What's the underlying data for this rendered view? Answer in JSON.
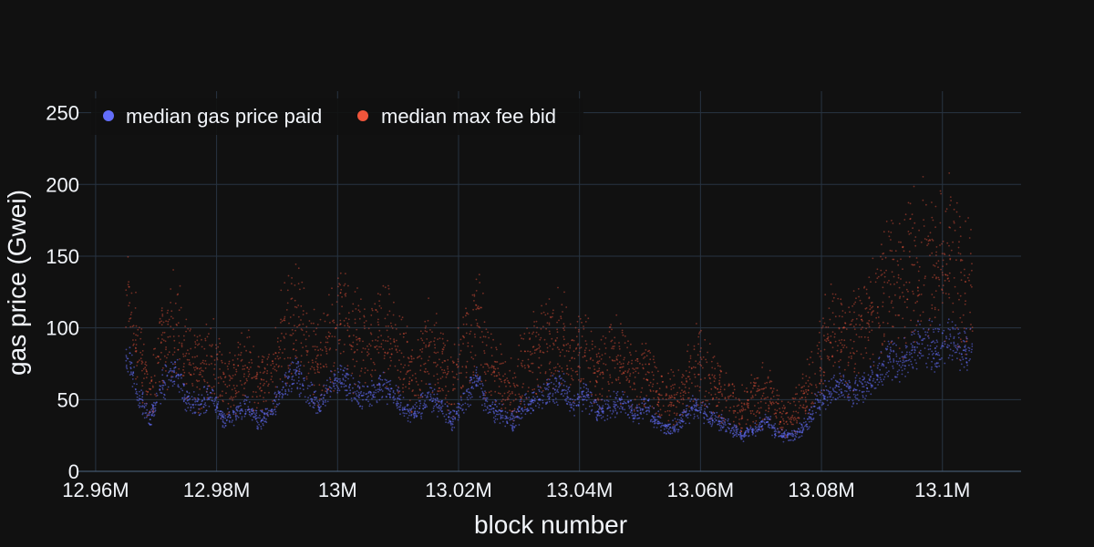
{
  "chart_data": {
    "type": "scatter",
    "title": "",
    "xlabel": "block number",
    "ylabel": "gas price (Gwei)",
    "xlim": [
      12957000,
      13113000
    ],
    "ylim": [
      0,
      265
    ],
    "x_ticks": [
      {
        "value": 12960000,
        "label": "12.96M"
      },
      {
        "value": 12980000,
        "label": "12.98M"
      },
      {
        "value": 13000000,
        "label": "13M"
      },
      {
        "value": 13020000,
        "label": "13.02M"
      },
      {
        "value": 13040000,
        "label": "13.04M"
      },
      {
        "value": 13060000,
        "label": "13.06M"
      },
      {
        "value": 13080000,
        "label": "13.08M"
      },
      {
        "value": 13100000,
        "label": "13.1M"
      }
    ],
    "y_ticks": [
      {
        "value": 0,
        "label": "0"
      },
      {
        "value": 50,
        "label": "50"
      },
      {
        "value": 100,
        "label": "100"
      },
      {
        "value": 150,
        "label": "150"
      },
      {
        "value": 200,
        "label": "200"
      },
      {
        "value": 250,
        "label": "250"
      }
    ],
    "grid": true,
    "legend_position": "top-left",
    "series": [
      {
        "name": "median gas price paid",
        "color": "#636efa",
        "x": [
          12965000,
          12967000,
          12969000,
          12971000,
          12973000,
          12975000,
          12977000,
          12979000,
          12981000,
          12983000,
          12985000,
          12987000,
          12989000,
          12991000,
          12993000,
          12995000,
          12997000,
          12999000,
          13001000,
          13003000,
          13005000,
          13007000,
          13009000,
          13011000,
          13013000,
          13015000,
          13017000,
          13019000,
          13021000,
          13023000,
          13025000,
          13027000,
          13029000,
          13031000,
          13033000,
          13035000,
          13037000,
          13039000,
          13041000,
          13043000,
          13045000,
          13047000,
          13049000,
          13051000,
          13053000,
          13055000,
          13057000,
          13059000,
          13061000,
          13063000,
          13065000,
          13067000,
          13069000,
          13071000,
          13073000,
          13075000,
          13077000,
          13079000,
          13081000,
          13083000,
          13085000,
          13087000,
          13089000,
          13091000,
          13093000,
          13095000,
          13097000,
          13099000,
          13101000,
          13103000,
          13105000
        ],
        "y": [
          85,
          55,
          35,
          60,
          70,
          50,
          45,
          55,
          35,
          40,
          45,
          35,
          40,
          60,
          70,
          55,
          45,
          60,
          65,
          55,
          50,
          60,
          55,
          45,
          40,
          55,
          45,
          35,
          50,
          65,
          45,
          40,
          35,
          45,
          50,
          55,
          60,
          45,
          55,
          40,
          45,
          50,
          40,
          45,
          35,
          30,
          35,
          45,
          40,
          35,
          30,
          25,
          30,
          35,
          25,
          25,
          30,
          45,
          55,
          60,
          55,
          60,
          65,
          80,
          75,
          85,
          90,
          85,
          90,
          85,
          85
        ]
      },
      {
        "name": "median max fee bid",
        "color": "#ef553b",
        "x": [
          12965000,
          12967000,
          12969000,
          12971000,
          12973000,
          12975000,
          12977000,
          12979000,
          12981000,
          12983000,
          12985000,
          12987000,
          12989000,
          12991000,
          12993000,
          12995000,
          12997000,
          12999000,
          13001000,
          13003000,
          13005000,
          13007000,
          13009000,
          13011000,
          13013000,
          13015000,
          13017000,
          13019000,
          13021000,
          13023000,
          13025000,
          13027000,
          13029000,
          13031000,
          13033000,
          13035000,
          13037000,
          13039000,
          13041000,
          13043000,
          13045000,
          13047000,
          13049000,
          13051000,
          13053000,
          13055000,
          13057000,
          13059000,
          13061000,
          13063000,
          13065000,
          13067000,
          13069000,
          13071000,
          13073000,
          13075000,
          13077000,
          13079000,
          13081000,
          13083000,
          13085000,
          13087000,
          13089000,
          13091000,
          13093000,
          13095000,
          13097000,
          13099000,
          13101000,
          13103000,
          13105000
        ],
        "y": [
          125,
          85,
          55,
          90,
          100,
          80,
          70,
          85,
          60,
          65,
          75,
          60,
          65,
          95,
          110,
          90,
          75,
          95,
          105,
          90,
          85,
          95,
          90,
          75,
          65,
          90,
          75,
          60,
          85,
          105,
          75,
          65,
          55,
          75,
          85,
          90,
          95,
          75,
          90,
          65,
          75,
          80,
          65,
          70,
          55,
          50,
          55,
          75,
          65,
          55,
          50,
          45,
          50,
          55,
          40,
          40,
          50,
          70,
          90,
          100,
          90,
          100,
          110,
          130,
          125,
          140,
          150,
          140,
          145,
          135,
          130
        ]
      }
    ]
  }
}
